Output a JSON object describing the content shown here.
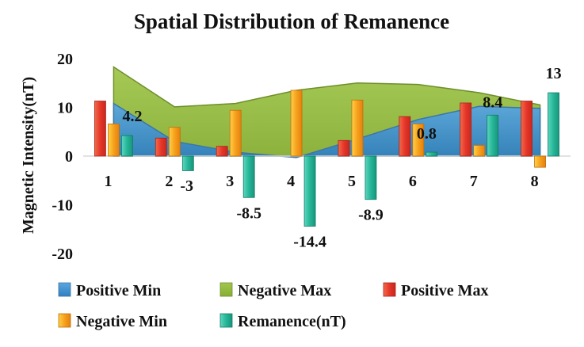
{
  "chart_data": {
    "type": "bar",
    "title": "Spatial Distribution of Remanence",
    "ylabel": "Magnetic Intensity(nT)",
    "xlabel": "",
    "ylim": [
      -20,
      20
    ],
    "yticks": [
      20,
      10,
      0,
      -10,
      -20
    ],
    "categories": [
      "1",
      "2",
      "3",
      "4",
      "5",
      "6",
      "7",
      "8"
    ],
    "grid": false,
    "legend_position": "bottom",
    "series": [
      {
        "name": "Positive Min",
        "kind": "area",
        "color": "#3b8fd0",
        "values": [
          10.8,
          3.0,
          0.8,
          -0.3,
          3.5,
          7.5,
          10.2,
          9.8
        ]
      },
      {
        "name": "Negative Max",
        "kind": "area",
        "color": "#8ab33a",
        "values": [
          18.3,
          10.1,
          10.8,
          13.5,
          15.0,
          14.7,
          13.0,
          10.5
        ]
      },
      {
        "name": "Positive Max",
        "kind": "bar",
        "color": "#e8462e",
        "values": [
          11.3,
          3.7,
          2.0,
          0.0,
          3.2,
          8.1,
          10.9,
          11.3
        ]
      },
      {
        "name": "Negative Min",
        "kind": "bar",
        "color": "#f29a1a",
        "values": [
          6.6,
          5.9,
          9.4,
          13.5,
          11.5,
          6.6,
          2.2,
          -2.3
        ]
      },
      {
        "name": "Remanence(nT)",
        "kind": "bar",
        "color": "#2ab59b",
        "values": [
          4.2,
          -3,
          -8.5,
          -14.4,
          -8.9,
          0.8,
          8.4,
          13
        ],
        "labels": [
          "4.2",
          "-3",
          "-8.5",
          "-14.4",
          "-8.9",
          "0.8",
          "8.4",
          "13"
        ]
      }
    ]
  }
}
